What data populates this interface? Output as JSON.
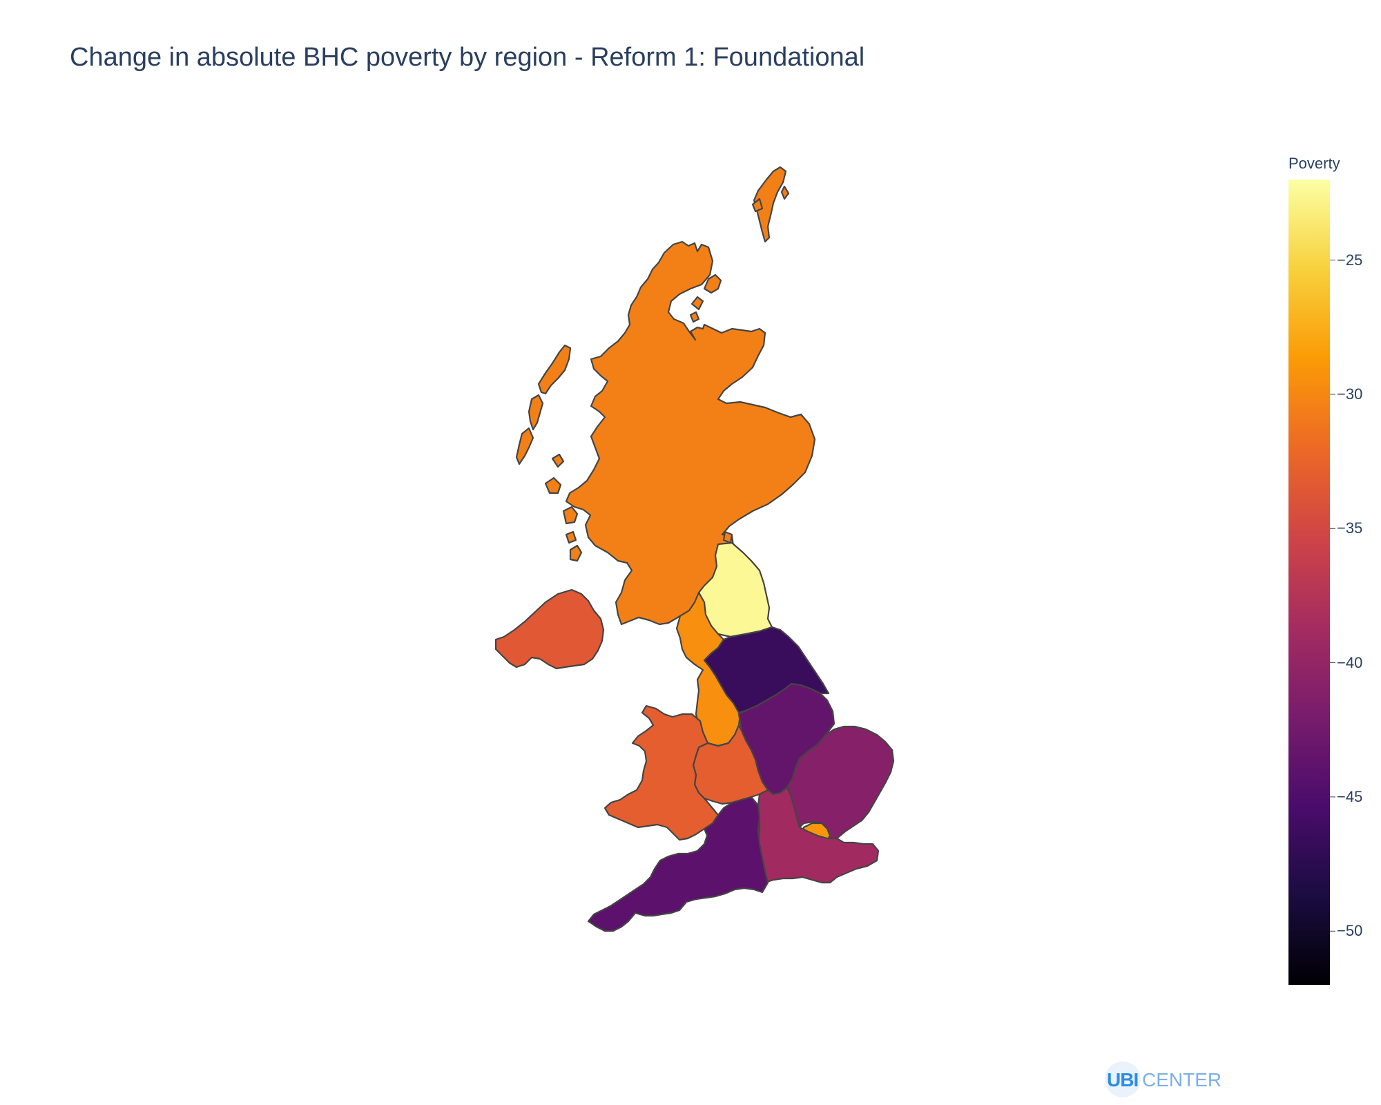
{
  "title": "Change in absolute BHC poverty by region - Reform 1: Foundational",
  "colorbar": {
    "title": "Poverty",
    "min": -52,
    "max": -22,
    "ticks": [
      -25,
      -30,
      -35,
      -40,
      -45,
      -50
    ],
    "tick_labels": [
      "−25",
      "−30",
      "−35",
      "−40",
      "−45",
      "−50"
    ],
    "colorscale": [
      "#000004",
      "#1b0c41",
      "#4a0c6b",
      "#781c6d",
      "#a52c60",
      "#cf4446",
      "#ed6925",
      "#fb9b06",
      "#f7d13d",
      "#fcffa4"
    ]
  },
  "chart_data": {
    "type": "choropleth",
    "metric": "Change in absolute BHC poverty",
    "regions": [
      {
        "name": "Scotland",
        "value": -30.5
      },
      {
        "name": "North East",
        "value": -22.5
      },
      {
        "name": "North West",
        "value": -29.5
      },
      {
        "name": "Yorkshire and the Humber",
        "value": -46.5
      },
      {
        "name": "East Midlands",
        "value": -43.5
      },
      {
        "name": "West Midlands",
        "value": -33
      },
      {
        "name": "East of England",
        "value": -41
      },
      {
        "name": "London",
        "value": -29
      },
      {
        "name": "South East",
        "value": -39
      },
      {
        "name": "South West",
        "value": -44
      },
      {
        "name": "Wales",
        "value": -33
      },
      {
        "name": "Northern Ireland",
        "value": -33.5
      }
    ]
  },
  "logo": {
    "bold": "UBI",
    "light": "CENTER"
  }
}
